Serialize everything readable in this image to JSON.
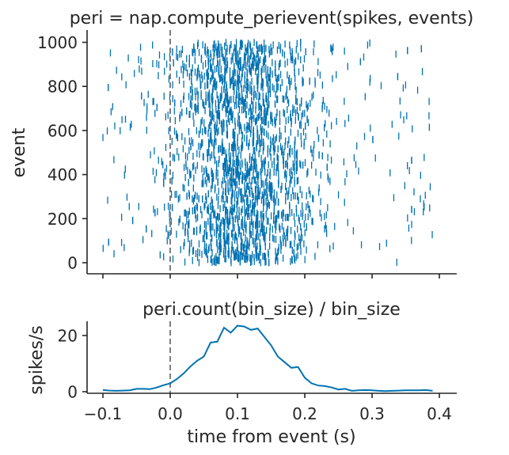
{
  "chart_data": [
    {
      "type": "scatter",
      "title": "peri = nap.compute_perievent(spikes, events)",
      "xlabel": "",
      "ylabel": "event",
      "xlim": [
        -0.1,
        0.4
      ],
      "ylim": [
        -40,
        1050
      ],
      "xticks": [
        -0.1,
        0.0,
        0.1,
        0.2,
        0.3,
        0.4
      ],
      "yticks": [
        0,
        200,
        400,
        600,
        800,
        1000
      ],
      "ytick_labels": [
        "0",
        "200",
        "400",
        "600",
        "800",
        "1000"
      ],
      "marker": "vertical tick",
      "event_line_x": 0.0,
      "color": "#0072b2",
      "line_color": "#7f7f7f",
      "raster": {
        "x_min": -0.1,
        "x_max": 0.39,
        "y_min": 0,
        "y_max": 1000,
        "n_points": 2400,
        "rate_profile": {
          "x": [
            -0.1,
            -0.09,
            -0.08,
            -0.07,
            -0.06,
            -0.05,
            -0.04,
            -0.03,
            -0.02,
            -0.01,
            0.0,
            0.01,
            0.02,
            0.03,
            0.04,
            0.05,
            0.06,
            0.07,
            0.08,
            0.09,
            0.1,
            0.11,
            0.12,
            0.13,
            0.14,
            0.15,
            0.16,
            0.17,
            0.18,
            0.19,
            0.2,
            0.21,
            0.22,
            0.23,
            0.24,
            0.25,
            0.26,
            0.27,
            0.28,
            0.29,
            0.3,
            0.31,
            0.32,
            0.33,
            0.34,
            0.35,
            0.36,
            0.37,
            0.38,
            0.39
          ],
          "y": [
            0.6,
            0.4,
            0.3,
            0.4,
            0.5,
            1.0,
            1.0,
            0.9,
            1.5,
            2.3,
            3.0,
            4.5,
            6.5,
            9,
            11,
            12.5,
            17.5,
            17.8,
            22.8,
            21,
            23.5,
            23.2,
            22,
            22.5,
            19.5,
            16.5,
            12.5,
            10.5,
            8.5,
            8.8,
            5,
            3,
            2.2,
            2.0,
            1.5,
            0.8,
            1.0,
            0.3,
            0.5,
            0.6,
            0.5,
            0.3,
            0.2,
            0.3,
            0.4,
            0.5,
            0.5,
            0.5,
            0.6,
            0.3
          ]
        }
      }
    },
    {
      "type": "line",
      "title": "peri.count(bin_size) / bin_size",
      "xlabel": "time from event (s)",
      "ylabel": "spikes/s",
      "xlim": [
        -0.12,
        0.42
      ],
      "ylim": [
        -0.5,
        25
      ],
      "xticks": [
        -0.1,
        0.0,
        0.1,
        0.2,
        0.3,
        0.4
      ],
      "xtick_labels": [
        "−0.1",
        "0.0",
        "0.1",
        "0.2",
        "0.3",
        "0.4"
      ],
      "yticks": [
        0,
        20
      ],
      "ytick_labels": [
        "0",
        "20"
      ],
      "event_line_x": 0.0,
      "color": "#0072b2",
      "line_color": "#7f7f7f",
      "x": [
        -0.1,
        -0.09,
        -0.08,
        -0.07,
        -0.06,
        -0.05,
        -0.04,
        -0.03,
        -0.02,
        -0.01,
        0.0,
        0.01,
        0.02,
        0.03,
        0.04,
        0.05,
        0.06,
        0.07,
        0.08,
        0.09,
        0.1,
        0.11,
        0.12,
        0.13,
        0.14,
        0.15,
        0.16,
        0.17,
        0.18,
        0.19,
        0.2,
        0.21,
        0.22,
        0.23,
        0.24,
        0.25,
        0.26,
        0.27,
        0.28,
        0.29,
        0.3,
        0.31,
        0.32,
        0.33,
        0.34,
        0.35,
        0.36,
        0.37,
        0.38,
        0.39
      ],
      "y": [
        0.6,
        0.4,
        0.3,
        0.4,
        0.5,
        1.0,
        1.0,
        0.9,
        1.5,
        2.3,
        3.0,
        4.5,
        6.5,
        9,
        11,
        12.5,
        17.5,
        17.8,
        22.8,
        21,
        23.5,
        23.2,
        22,
        22.5,
        19.5,
        16.5,
        12.5,
        10.5,
        8.5,
        8.8,
        5,
        3,
        2.2,
        2.0,
        1.5,
        0.8,
        1.0,
        0.3,
        0.5,
        0.6,
        0.5,
        0.3,
        0.2,
        0.3,
        0.4,
        0.5,
        0.5,
        0.5,
        0.6,
        0.3
      ]
    }
  ]
}
